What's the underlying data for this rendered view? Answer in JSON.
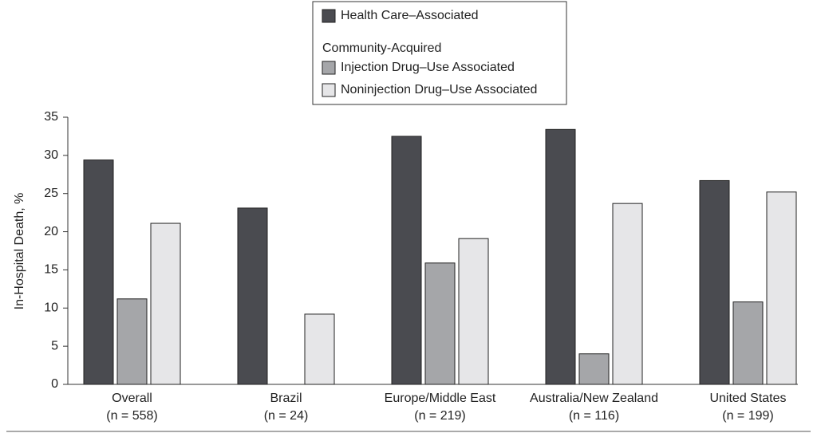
{
  "chart_data": {
    "type": "bar",
    "y_label": "In-Hospital Death, %",
    "categories": [
      "Overall",
      "Brazil",
      "Europe/Middle East",
      "Australia/New Zealand",
      "United States"
    ],
    "category_counts": [
      "(n = 558)",
      "(n = 24)",
      "(n = 219)",
      "(n = 116)",
      "(n = 199)"
    ],
    "legend_group_title": "Community-Acquired",
    "series": [
      {
        "name": "Health Care–Associated",
        "color": "#4a4b50",
        "values": [
          29.4,
          23.1,
          32.5,
          33.4,
          26.7
        ]
      },
      {
        "name": "Injection Drug–Use Associated",
        "color": "#a5a6a9",
        "values": [
          11.2,
          null,
          15.9,
          4.0,
          10.8
        ]
      },
      {
        "name": "Noninjection Drug–Use Associated",
        "color": "#e6e6e8",
        "values": [
          21.1,
          9.2,
          19.1,
          23.7,
          25.2
        ]
      }
    ],
    "ylim": [
      0,
      35
    ],
    "yticks": [
      0,
      5,
      10,
      15,
      20,
      25,
      30,
      35
    ],
    "grid": false
  }
}
